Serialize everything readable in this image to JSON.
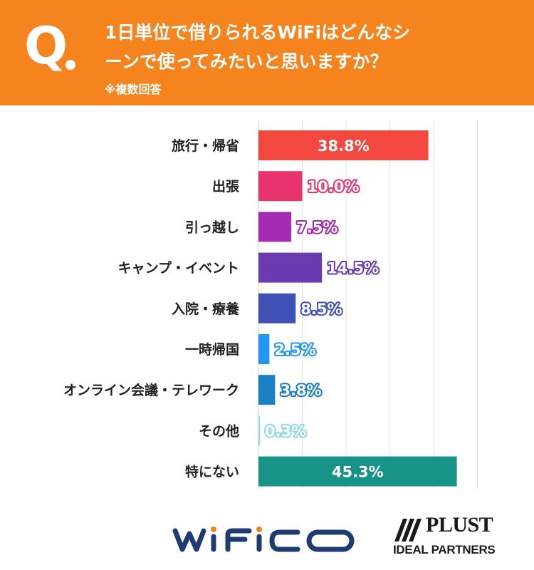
{
  "header": {
    "q_label": "Q",
    "line1": "1日単位で借りられるWiFiはどんなシ",
    "line2": "ーンで使ってみたいと思いますか？",
    "note": "※複数回答"
  },
  "chart_data": {
    "type": "bar",
    "orientation": "horizontal",
    "categories": [
      "旅行・帰省",
      "出張",
      "引っ越し",
      "キャンプ・イベント",
      "入院・療養",
      "一時帰国",
      "オンライン会議・テレワーク",
      "その他",
      "特にない"
    ],
    "values": [
      38.8,
      10.0,
      7.5,
      14.5,
      8.5,
      2.5,
      3.8,
      0.3,
      45.3
    ],
    "labels": [
      "38.8%",
      "10.0%",
      "7.5%",
      "14.5%",
      "8.5%",
      "2.5%",
      "3.8%",
      "0.3%",
      "45.3%"
    ],
    "colors": [
      "#f4473f",
      "#e8336d",
      "#a62bb3",
      "#6a3ab1",
      "#3f51b5",
      "#2196f3",
      "#1b7fc4",
      "#90d8ec",
      "#179387"
    ],
    "xlim": [
      0,
      50
    ],
    "grid": true,
    "title": "",
    "xlabel": "",
    "ylabel": ""
  },
  "logos": {
    "wifico": "wifico",
    "plust": "PLUST",
    "plust_sub": "IDEAL PARTNERS"
  }
}
